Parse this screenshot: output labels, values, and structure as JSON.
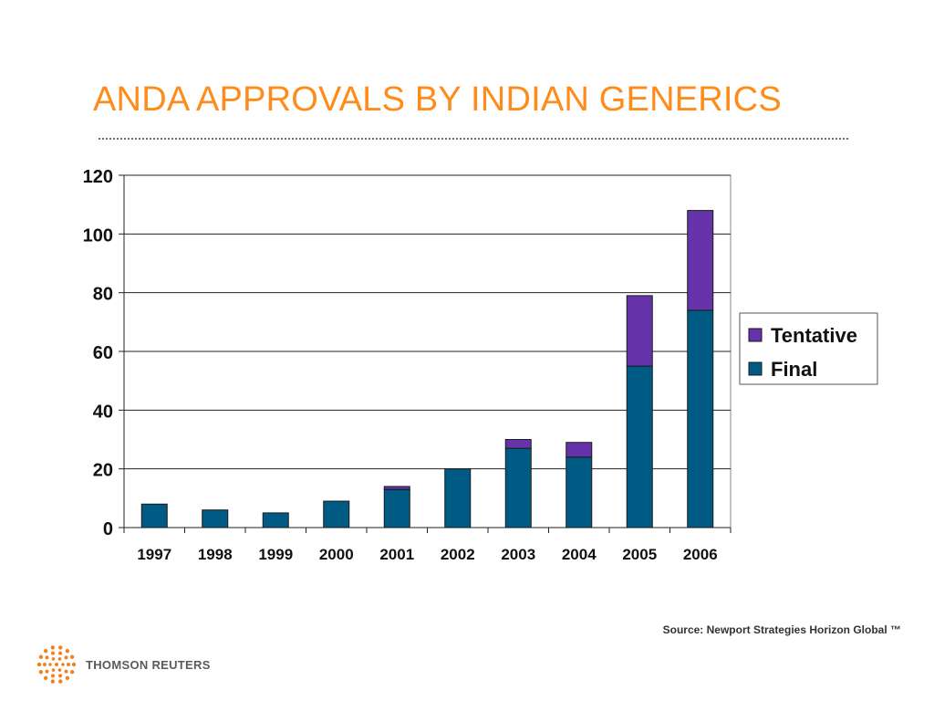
{
  "slide": {
    "title": "ANDA APPROVALS BY INDIAN GENERICS",
    "source": "Source: Newport Strategies Horizon Global ™",
    "logo_text": "THOMSON REUTERS"
  },
  "colors": {
    "title": "#ff8c1a",
    "tentative": "#6633aa",
    "final": "#005b84",
    "logo": "#f0821e"
  },
  "chart_data": {
    "type": "bar",
    "stacked": true,
    "categories": [
      "1997",
      "1998",
      "1999",
      "2000",
      "2001",
      "2002",
      "2003",
      "2004",
      "2005",
      "2006"
    ],
    "series": [
      {
        "name": "Final",
        "values": [
          8,
          6,
          5,
          9,
          13,
          20,
          27,
          24,
          55,
          74
        ]
      },
      {
        "name": "Tentative",
        "values": [
          0,
          0,
          0,
          0,
          1,
          0,
          3,
          5,
          24,
          34
        ]
      }
    ],
    "ylim": [
      0,
      120
    ],
    "yticks": [
      0,
      20,
      40,
      60,
      80,
      100,
      120
    ],
    "grid": true,
    "legend": "right",
    "title": "",
    "xlabel": "",
    "ylabel": ""
  }
}
